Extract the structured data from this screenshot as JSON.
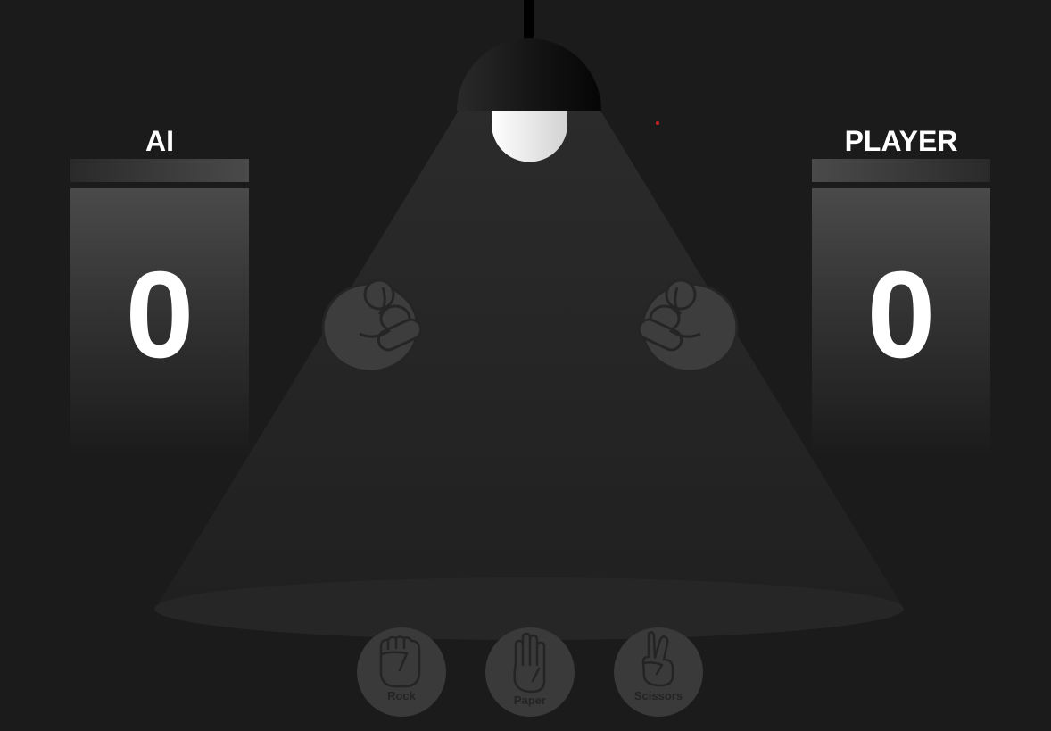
{
  "scoreboard": {
    "ai": {
      "label": "AI",
      "score": "0"
    },
    "player": {
      "label": "PLAYER",
      "score": "0"
    }
  },
  "choices": [
    {
      "label": "Rock",
      "icon": "rock-hand-icon"
    },
    {
      "label": "Paper",
      "icon": "paper-hand-icon"
    },
    {
      "label": "Scissors",
      "icon": "scissors-hand-icon"
    }
  ],
  "hands": {
    "ai": "fist-icon",
    "player": "fist-icon"
  },
  "colors": {
    "background": "#1b1b1b",
    "score_text": "#ffffff",
    "button": "#3a3a3a",
    "hand": "#3d3d3d",
    "indicator": "#cc2222"
  }
}
